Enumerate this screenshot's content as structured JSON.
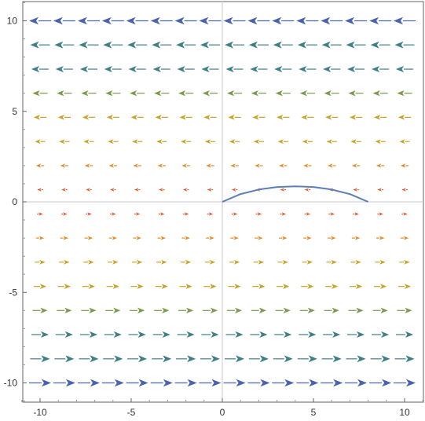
{
  "chart_data": {
    "type": "vector-field",
    "title": "",
    "xlabel": "",
    "ylabel": "",
    "xlim": [
      -11.2,
      11.2
    ],
    "ylim": [
      -11.0,
      11.0
    ],
    "xticks": [
      -10,
      -5,
      0,
      5,
      10
    ],
    "yticks": [
      -10,
      -5,
      0,
      5,
      10
    ],
    "xtick_labels": [
      "-10",
      "-5",
      "0",
      "5",
      "10"
    ],
    "ytick_labels": [
      "-10",
      "-5",
      "0",
      "5",
      "10"
    ],
    "grid": false,
    "field": {
      "description": "horizontal vectors, direction = -sign(y), magnitude grows with |y|",
      "rows_y": [
        10,
        8.67,
        7.33,
        6.0,
        4.67,
        3.33,
        2.0,
        0.67,
        -0.67,
        -2.0,
        -3.33,
        -4.67,
        -6.0,
        -7.33,
        -8.67,
        -10
      ],
      "cols_x": [
        -10,
        -8.67,
        -7.33,
        -6.0,
        -4.67,
        -3.33,
        -2.0,
        -0.67,
        0.67,
        2.0,
        3.33,
        4.67,
        6.0,
        7.33,
        8.67,
        10
      ],
      "color_scale": [
        "#4a63b0",
        "#3f7f86",
        "#7a9a4e",
        "#c9a22a",
        "#e8892a",
        "#e05a2a"
      ]
    },
    "curve": {
      "color": "#5b7fb8",
      "points": [
        [
          0,
          0
        ],
        [
          1,
          0.43
        ],
        [
          2,
          0.68
        ],
        [
          3,
          0.82
        ],
        [
          4,
          0.86
        ],
        [
          5,
          0.82
        ],
        [
          6,
          0.68
        ],
        [
          7,
          0.43
        ],
        [
          8,
          0.0
        ]
      ]
    }
  }
}
